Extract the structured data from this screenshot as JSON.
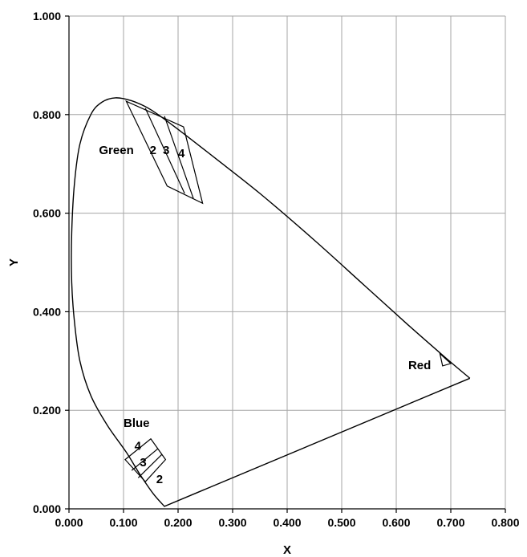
{
  "chart_data": {
    "type": "line",
    "title": "",
    "xlabel": "X",
    "ylabel": "Y",
    "xlim": [
      0,
      0.8
    ],
    "ylim": [
      0,
      1.0
    ],
    "grid": true,
    "x_ticks": [
      "0.000",
      "0.100",
      "0.200",
      "0.300",
      "0.400",
      "0.500",
      "0.600",
      "0.700",
      "0.800"
    ],
    "y_ticks": [
      "0.000",
      "0.200",
      "0.400",
      "0.600",
      "0.800",
      "1.000"
    ],
    "x_tick_values": [
      0,
      0.1,
      0.2,
      0.3,
      0.4,
      0.5,
      0.6,
      0.7,
      0.8
    ],
    "y_tick_values": [
      0,
      0.2,
      0.4,
      0.6,
      0.8,
      1.0
    ],
    "spectrum_locus": {
      "points": [
        [
          0.735,
          0.265
        ],
        [
          0.69,
          0.307
        ],
        [
          0.62,
          0.375
        ],
        [
          0.54,
          0.455
        ],
        [
          0.45,
          0.545
        ],
        [
          0.35,
          0.64
        ],
        [
          0.27,
          0.71
        ],
        [
          0.2,
          0.77
        ],
        [
          0.15,
          0.81
        ],
        [
          0.115,
          0.828
        ],
        [
          0.085,
          0.834
        ],
        [
          0.06,
          0.825
        ],
        [
          0.04,
          0.8
        ],
        [
          0.02,
          0.74
        ],
        [
          0.01,
          0.66
        ],
        [
          0.005,
          0.56
        ],
        [
          0.005,
          0.46
        ],
        [
          0.01,
          0.38
        ],
        [
          0.02,
          0.3
        ],
        [
          0.04,
          0.23
        ],
        [
          0.07,
          0.17
        ],
        [
          0.105,
          0.115
        ],
        [
          0.13,
          0.07
        ],
        [
          0.155,
          0.03
        ],
        [
          0.175,
          0.005
        ],
        [
          0.735,
          0.265
        ]
      ]
    },
    "regions": [
      {
        "group": "Green",
        "outer": [
          [
            0.105,
            0.827
          ],
          [
            0.21,
            0.775
          ],
          [
            0.245,
            0.62
          ],
          [
            0.18,
            0.655
          ]
        ],
        "dividers": [
          [
            [
              0.14,
              0.813
            ],
            [
              0.212,
              0.64
            ]
          ],
          [
            [
              0.175,
              0.797
            ],
            [
              0.228,
              0.63
            ]
          ]
        ],
        "color": "#000000"
      },
      {
        "group": "Blue",
        "outer": [
          [
            0.103,
            0.1
          ],
          [
            0.15,
            0.142
          ],
          [
            0.177,
            0.1
          ],
          [
            0.14,
            0.055
          ]
        ],
        "dividers": [
          [
            [
              0.115,
              0.078
            ],
            [
              0.163,
              0.122
            ]
          ],
          [
            [
              0.127,
              0.063
            ],
            [
              0.17,
              0.11
            ]
          ]
        ],
        "color": "#000000"
      },
      {
        "group": "Red",
        "outer": [
          [
            0.68,
            0.315
          ],
          [
            0.7,
            0.295
          ],
          [
            0.685,
            0.29
          ]
        ],
        "dividers": [],
        "color": "#1f1f8f"
      }
    ],
    "annotations": [
      {
        "text": "Green",
        "x": 0.055,
        "y": 0.72
      },
      {
        "text": "2",
        "x": 0.148,
        "y": 0.72
      },
      {
        "text": "3",
        "x": 0.172,
        "y": 0.72
      },
      {
        "text": "4",
        "x": 0.2,
        "y": 0.713
      },
      {
        "text": "Blue",
        "x": 0.1,
        "y": 0.166
      },
      {
        "text": "4",
        "x": 0.12,
        "y": 0.12
      },
      {
        "text": "3",
        "x": 0.13,
        "y": 0.086
      },
      {
        "text": "2",
        "x": 0.16,
        "y": 0.052
      },
      {
        "text": "Red",
        "x": 0.622,
        "y": 0.283
      }
    ]
  }
}
